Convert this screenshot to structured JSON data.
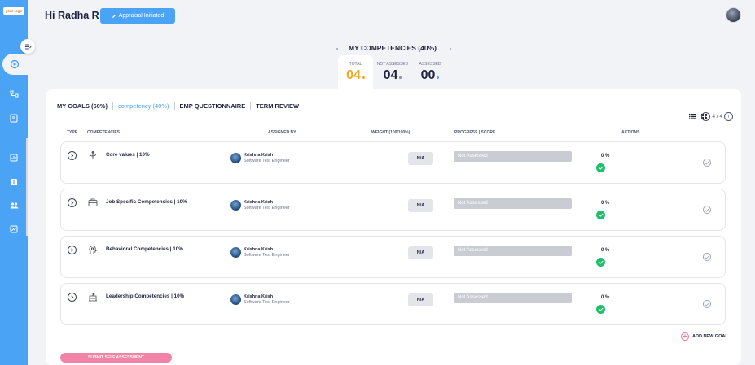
{
  "brand": {
    "logo_text": "your logo"
  },
  "header": {
    "greeting": "Hi Radha R",
    "status_button": "Appraisal Initiated"
  },
  "summary": {
    "title": "MY COMPETENCIES (40%)",
    "stats": [
      {
        "label": "TOTAL",
        "value": "04",
        "color": "#f5a623"
      },
      {
        "label": "NOT ASSESSED",
        "value": "04",
        "color": "#8a8fa3"
      },
      {
        "label": "ASSESSED",
        "value": "00",
        "color": "#4ba3f6"
      }
    ]
  },
  "tabs": [
    {
      "label": "MY GOALS (60%)",
      "active": false
    },
    {
      "label": "competency (40%)",
      "active": true
    },
    {
      "label": "EMP QUESTIONNAIRE",
      "active": false
    },
    {
      "label": "TERM REVIEW",
      "active": false
    }
  ],
  "pager": {
    "text": "4 / 4"
  },
  "table": {
    "headers": [
      "TYPE",
      "COMPETENCIES",
      "ASSIGNED BY",
      "WEIGHT (100/100%)",
      "PROGRESS | SCORE",
      "ACTIONS"
    ],
    "rows": [
      {
        "icon": "values-icon",
        "name": "Core values | 10%",
        "assignee": "Krishna Krish",
        "role": "Software Test Engineer",
        "weight": "N/A",
        "progress": "Not Assessed",
        "score": "0 %"
      },
      {
        "icon": "briefcase-icon",
        "name": "Job Specific Competencies | 10%",
        "assignee": "Krishna Krish",
        "role": "Software Test Engineer",
        "weight": "N/A",
        "progress": "Not Assessed",
        "score": "0 %"
      },
      {
        "icon": "head-icon",
        "name": "Behavioral Competencies | 10%",
        "assignee": "Krishna Krish",
        "role": "Software Test Engineer",
        "weight": "N/A",
        "progress": "Not Assessed",
        "score": "0 %"
      },
      {
        "icon": "building-icon",
        "name": "Leadership Competencies | 10%",
        "assignee": "Krishna Krish",
        "role": "Software Test Engineer",
        "weight": "N/A",
        "progress": "Not Assessed",
        "score": "0 %"
      }
    ]
  },
  "add_goal": "ADD NEW GOAL",
  "submit": "SUBMIT SELF ASSESSMENT"
}
